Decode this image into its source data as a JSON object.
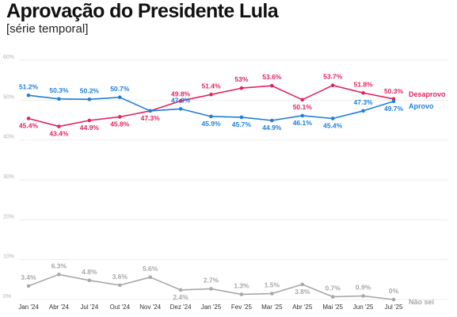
{
  "header": {
    "title": "Aprovação do Presidente Lula",
    "subtitle": "[série temporal]"
  },
  "chart_data": {
    "type": "line",
    "title": "Aprovação do Presidente Lula",
    "subtitle": "[série temporal]",
    "categories": [
      "Jan '24",
      "Abr '24",
      "Jul '24",
      "Out '24",
      "Nov '24",
      "Dez '24",
      "Jan '25",
      "Fev '25",
      "Mar '25",
      "Abr '25",
      "Mai '25",
      "Jun '25",
      "Jul '25"
    ],
    "ylim": [
      0,
      60
    ],
    "yticks": [
      "0%",
      "10%",
      "20%",
      "30%",
      "40%",
      "50%",
      "60%"
    ],
    "grid": true,
    "legend": "end-of-line labels, right",
    "series": [
      {
        "name": "Desaprovo",
        "color": "#e0245e",
        "values": [
          45.4,
          43.4,
          44.9,
          45.8,
          47.3,
          49.8,
          51.4,
          53,
          53.6,
          50.1,
          53.7,
          51.8,
          50.3
        ],
        "labels": [
          "45.4%",
          "43.4%",
          "44.9%",
          "45.8%",
          "47.3%",
          "49.8%",
          "51.4%",
          "53%",
          "53.6%",
          "50.1%",
          "53.7%",
          "51.8%",
          "50.3%"
        ]
      },
      {
        "name": "Aprovo",
        "color": "#1e7fd9",
        "values": [
          51.2,
          50.3,
          50.2,
          50.7,
          47.3,
          47.8,
          45.9,
          45.7,
          44.9,
          46.1,
          45.4,
          47.3,
          49.7
        ],
        "labels": [
          "51.2%",
          "50.3%",
          "50.2%",
          "50.7%",
          "",
          "47.8%",
          "45.9%",
          "45.7%",
          "44.9%",
          "46.1%",
          "45.4%",
          "47.3%",
          "49.7%"
        ]
      },
      {
        "name": "Não sei",
        "color": "#a8a8a8",
        "values": [
          3.4,
          6.3,
          4.8,
          3.6,
          5.6,
          2.4,
          2.7,
          1.3,
          1.5,
          3.8,
          0.7,
          0.9,
          0
        ],
        "labels": [
          "3.4%",
          "6.3%",
          "4.8%",
          "3.6%",
          "5.6%",
          "2.4%",
          "2.7%",
          "1.3%",
          "1.5%",
          "3.8%",
          "0.7%",
          "0.9%",
          "0%"
        ]
      }
    ]
  }
}
